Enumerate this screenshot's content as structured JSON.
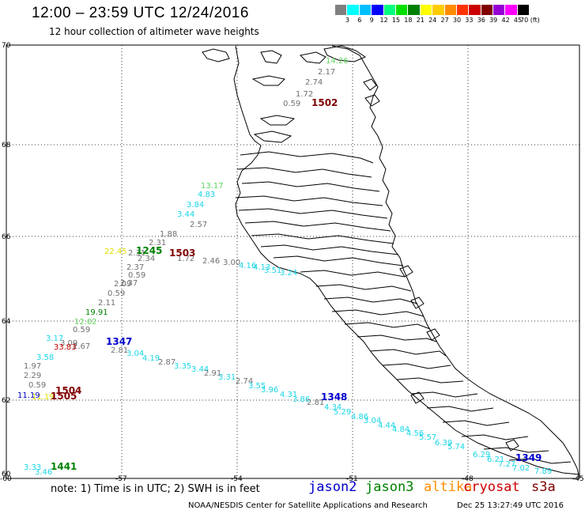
{
  "header": {
    "title": "12:00 – 23:59 UTC 12/24/2016",
    "subtitle": "12 hour collection of altimeter wave heights"
  },
  "legend": {
    "colors": [
      "#7f7f7f",
      "#00ffff",
      "#00bfff",
      "#0000ff",
      "#00ff7f",
      "#00e000",
      "#008000",
      "#ffff00",
      "#ffcc00",
      "#ff8c00",
      "#ff3300",
      "#cc0000",
      "#800000",
      "#9400d3",
      "#ff00ff",
      "#000000"
    ],
    "labels": [
      "3",
      "6",
      "9",
      "12",
      "15",
      "18",
      "21",
      "24",
      "27",
      "30",
      "33",
      "36",
      "39",
      "42",
      "45",
      "70 (ft)"
    ]
  },
  "axes": {
    "y_labels": [
      "70",
      "68",
      "66",
      "64",
      "62",
      "60"
    ],
    "x_labels": [
      "-60",
      "-57",
      "-54",
      "-51",
      "-48",
      "-45"
    ]
  },
  "observations": [
    {
      "text": "14.26",
      "color": "#5fd25f"
    },
    {
      "text": "2.17",
      "color": "#707070"
    },
    {
      "text": "2.74",
      "color": "#707070"
    },
    {
      "text": "1.72",
      "color": "#707070"
    },
    {
      "text": "0.59",
      "color": "#707070"
    },
    {
      "text": "13.17",
      "color": "#5fd25f"
    },
    {
      "text": "4.83",
      "color": "#1ad6e6"
    },
    {
      "text": "3.84",
      "color": "#1ad6e6"
    },
    {
      "text": "3.44",
      "color": "#1ad6e6"
    },
    {
      "text": "2.57",
      "color": "#707070"
    },
    {
      "text": "1.88",
      "color": "#707070"
    },
    {
      "text": "2.31",
      "color": "#707070"
    },
    {
      "text": "22.45",
      "color": "#e0e000"
    },
    {
      "text": "2.31",
      "color": "#707070"
    },
    {
      "text": "2.34",
      "color": "#707070"
    },
    {
      "text": "1.72",
      "color": "#707070"
    },
    {
      "text": "2.46",
      "color": "#707070"
    },
    {
      "text": "3.00",
      "color": "#707070"
    },
    {
      "text": "4.16",
      "color": "#1ad6e6"
    },
    {
      "text": "4.13",
      "color": "#1ad6e6"
    },
    {
      "text": "3.51",
      "color": "#1ad6e6"
    },
    {
      "text": "3.24",
      "color": "#1ad6e6"
    },
    {
      "text": "2.37",
      "color": "#707070"
    },
    {
      "text": "0.59",
      "color": "#707070"
    },
    {
      "text": "2.37",
      "color": "#707070"
    },
    {
      "text": "2.09",
      "color": "#707070"
    },
    {
      "text": "0.59",
      "color": "#707070"
    },
    {
      "text": "2.11",
      "color": "#707070"
    },
    {
      "text": "19.91",
      "color": "#008000"
    },
    {
      "text": "12.02",
      "color": "#5fd25f"
    },
    {
      "text": "0.59",
      "color": "#707070"
    },
    {
      "text": "3.17",
      "color": "#1ad6e6"
    },
    {
      "text": "3.09",
      "color": "#707070"
    },
    {
      "text": "2.67",
      "color": "#707070"
    },
    {
      "text": "2.81",
      "color": "#707070"
    },
    {
      "text": "33.83",
      "color": "#c00000"
    },
    {
      "text": "3.58",
      "color": "#1ad6e6"
    },
    {
      "text": "3.04",
      "color": "#1ad6e6"
    },
    {
      "text": "4.19",
      "color": "#1ad6e6"
    },
    {
      "text": "2.87",
      "color": "#707070"
    },
    {
      "text": "3.35",
      "color": "#1ad6e6"
    },
    {
      "text": "3.44",
      "color": "#1ad6e6"
    },
    {
      "text": "2.91",
      "color": "#707070"
    },
    {
      "text": "1.97",
      "color": "#707070"
    },
    {
      "text": "2.29",
      "color": "#707070"
    },
    {
      "text": "3.31",
      "color": "#1ad6e6"
    },
    {
      "text": "2.74",
      "color": "#707070"
    },
    {
      "text": "0.59",
      "color": "#707070"
    },
    {
      "text": "3.55",
      "color": "#1ad6e6"
    },
    {
      "text": "3.96",
      "color": "#1ad6e6"
    },
    {
      "text": "4.31",
      "color": "#1ad6e6"
    },
    {
      "text": "3.86",
      "color": "#1ad6e6"
    },
    {
      "text": "2.81",
      "color": "#707070"
    },
    {
      "text": "4.34",
      "color": "#1ad6e6"
    },
    {
      "text": "11.19",
      "color": "#e0e000"
    },
    {
      "text": "11.19",
      "color": "#0000cc"
    },
    {
      "text": "5.29",
      "color": "#1ad6e6"
    },
    {
      "text": "4.86",
      "color": "#1ad6e6"
    },
    {
      "text": "3.04",
      "color": "#1ad6e6"
    },
    {
      "text": "4.44",
      "color": "#1ad6e6"
    },
    {
      "text": "4.84",
      "color": "#1ad6e6"
    },
    {
      "text": "4.56",
      "color": "#1ad6e6"
    },
    {
      "text": "5.57",
      "color": "#1ad6e6"
    },
    {
      "text": "6.39",
      "color": "#1ad6e6"
    },
    {
      "text": "5.74",
      "color": "#1ad6e6"
    },
    {
      "text": "6.29",
      "color": "#1ad6e6"
    },
    {
      "text": "6.21",
      "color": "#1ad6e6"
    },
    {
      "text": "7.27",
      "color": "#1ad6e6"
    },
    {
      "text": "7.02",
      "color": "#1ad6e6"
    },
    {
      "text": "7.89",
      "color": "#1ad6e6"
    },
    {
      "text": "3.33",
      "color": "#1ad6e6"
    },
    {
      "text": "3.46",
      "color": "#1ad6e6"
    }
  ],
  "pass_times": [
    {
      "text": "1502",
      "color": "#800000"
    },
    {
      "text": "1245",
      "color": "#008000"
    },
    {
      "text": "1503",
      "color": "#800000"
    },
    {
      "text": "1347",
      "color": "#0000cc"
    },
    {
      "text": "1504",
      "color": "#800000"
    },
    {
      "text": "1505",
      "color": "#800000"
    },
    {
      "text": "1348",
      "color": "#0000cc"
    },
    {
      "text": "1349",
      "color": "#0000cc"
    },
    {
      "text": "1441",
      "color": "#008000"
    }
  ],
  "note": "note: 1) Time is in UTC; 2) SWH is in feet",
  "satellites": [
    {
      "name": "jason2",
      "color": "#0000cc"
    },
    {
      "name": "jason3",
      "color": "#008000"
    },
    {
      "name": "altika",
      "color": "#ff8c00"
    },
    {
      "name": "cryosat",
      "color": "#cc0000"
    },
    {
      "name": "s3a",
      "color": "#800000"
    }
  ],
  "footer": {
    "credit": "NOAA/NESDIS Center for Satellite Applications and Research",
    "timestamp": "Dec 25 13:27:49 UTC 2016"
  }
}
